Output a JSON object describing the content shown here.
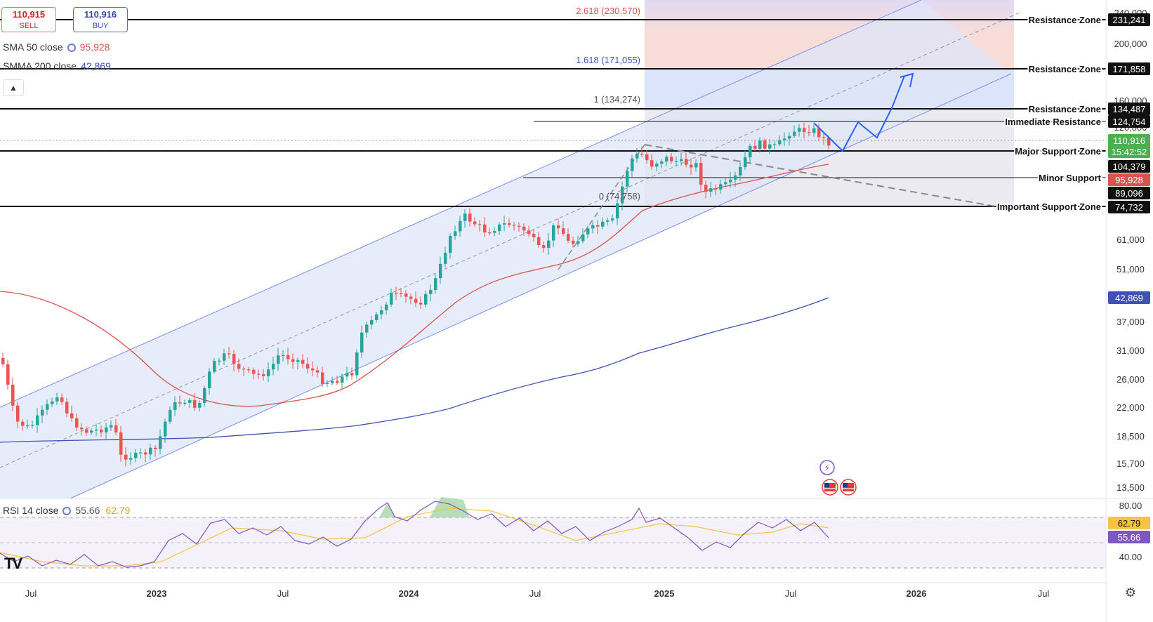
{
  "header": {
    "sell": {
      "price": "110,915",
      "label": "SELL"
    },
    "buy": {
      "price": "110,916",
      "label": "BUY"
    },
    "sma": {
      "label": "SMA 50 close",
      "value": "95,928",
      "color": "#d9534f"
    },
    "smma": {
      "label": "SMMA 200 close",
      "value": "42,869",
      "color": "#3f51b5"
    },
    "collapse_icon": "chevron-up-icon"
  },
  "y_axis": {
    "ticks": [
      "240,000",
      "200,000",
      "160,000",
      "120,000",
      "61,000",
      "51,000",
      "37,000",
      "31,000",
      "26,000",
      "22,000",
      "18,500",
      "15,700",
      "13,500"
    ],
    "scale": "log"
  },
  "x_axis": {
    "ticks": [
      "Jul",
      "2023",
      "Jul",
      "2024",
      "Jul",
      "2025",
      "Jul",
      "2026",
      "Jul"
    ]
  },
  "fibonacci": [
    {
      "label": "2.618 (230,570)"
    },
    {
      "label": "1.618 (171,055)"
    },
    {
      "label": "1 (134,274)"
    },
    {
      "label": "0 (74,758)"
    }
  ],
  "levels": [
    {
      "name": "Resistance Zone",
      "price_tag": "231,241"
    },
    {
      "name": "Resistance Zone",
      "price_tag": "171,858"
    },
    {
      "name": "Resistance Zone",
      "price_tag": "134,487"
    },
    {
      "name": "Immediate Resistance",
      "price_tag": "124,754"
    },
    {
      "name": "Major Support Zone",
      "price_tag": "104,379"
    },
    {
      "name": "Minor Support",
      "price_tag": "89,096"
    },
    {
      "name": "Important Support Zone",
      "price_tag": "74,732"
    }
  ],
  "price_tags": {
    "current_price": "110,916",
    "countdown": "15:42:52",
    "sma_tag": "95,928",
    "smma_tag": "42,869"
  },
  "rsi": {
    "label": "RSI 14 close",
    "value": "55.66",
    "ma_value": "62.79",
    "ticks": [
      "80.00",
      "40.00"
    ],
    "tags": [
      "62.79",
      "55.66"
    ]
  },
  "colors": {
    "up": "#26a69a",
    "down": "#ef5350",
    "sma": "#d9534f",
    "smma": "#3f51b5",
    "channel": "#dfe5f8",
    "projection": "#2962ff",
    "rsi_line": "#7e57c2",
    "rsi_ma": "#f4c542"
  },
  "icons": {
    "logo": "TV",
    "settings": "gear-icon",
    "events": "lightning-icon",
    "flags": "us-flag-icon"
  }
}
